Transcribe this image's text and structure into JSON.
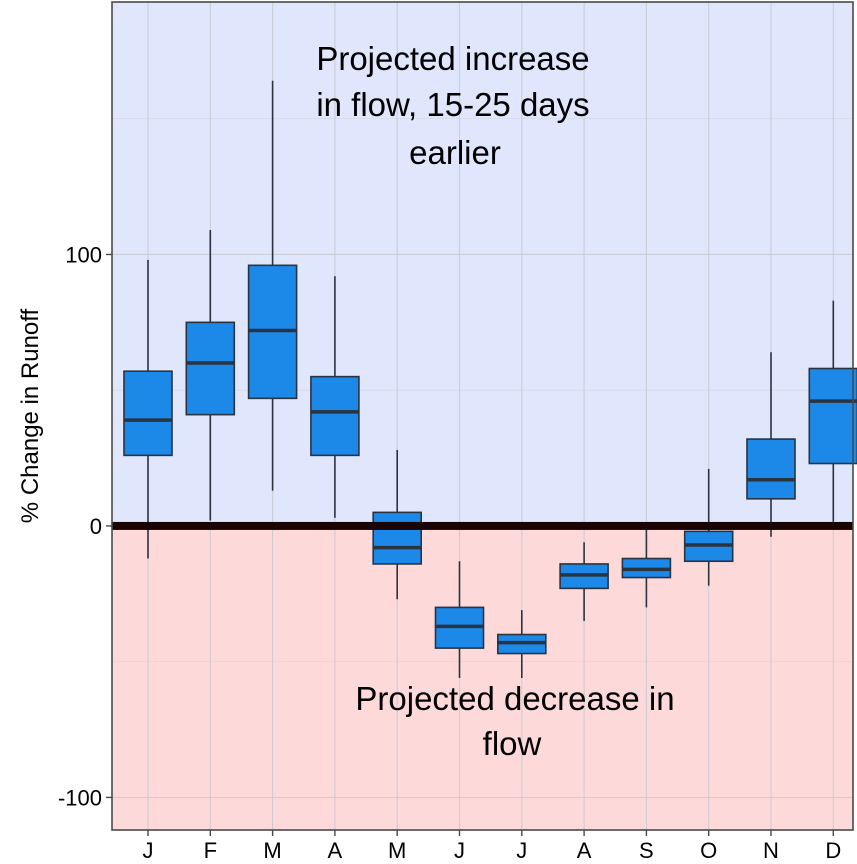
{
  "chart_data": {
    "type": "boxplot",
    "ylabel": "% Change in Runoff",
    "categories": [
      "J",
      "F",
      "M",
      "A",
      "M",
      "J",
      "J",
      "A",
      "S",
      "O",
      "N",
      "D"
    ],
    "boxes": [
      {
        "whisker_low": -12,
        "q1": 26,
        "median": 39,
        "q3": 57,
        "whisker_high": 98
      },
      {
        "whisker_low": 2,
        "q1": 41,
        "median": 60,
        "q3": 75,
        "whisker_high": 109
      },
      {
        "whisker_low": 13,
        "q1": 47,
        "median": 72,
        "q3": 96,
        "whisker_high": 164
      },
      {
        "whisker_low": 3,
        "q1": 26,
        "median": 42,
        "q3": 55,
        "whisker_high": 92
      },
      {
        "whisker_low": -27,
        "q1": -14,
        "median": -8,
        "q3": 5,
        "whisker_high": 28
      },
      {
        "whisker_low": -56,
        "q1": -45,
        "median": -37,
        "q3": -30,
        "whisker_high": -13
      },
      {
        "whisker_low": -56,
        "q1": -47,
        "median": -43,
        "q3": -40,
        "whisker_high": -31
      },
      {
        "whisker_low": -35,
        "q1": -23,
        "median": -18,
        "q3": -14,
        "whisker_high": -6
      },
      {
        "whisker_low": -30,
        "q1": -19,
        "median": -16,
        "q3": -12,
        "whisker_high": 0
      },
      {
        "whisker_low": -22,
        "q1": -13,
        "median": -7,
        "q3": -2,
        "whisker_high": 21
      },
      {
        "whisker_low": -4,
        "q1": 10,
        "median": 17,
        "q3": 32,
        "whisker_high": 64
      },
      {
        "whisker_low": 1,
        "q1": 23,
        "median": 46,
        "q3": 58,
        "whisker_high": 83
      }
    ],
    "yticks": [
      -100,
      0,
      100
    ],
    "ylim": [
      -112,
      193
    ],
    "zero_line": 0,
    "annotations": {
      "top": [
        "Projected increase",
        "in flow, 15-25 days",
        "earlier"
      ],
      "bottom": [
        "Projected decrease in",
        "flow"
      ]
    },
    "colors": {
      "box_fill": "#1c89e8",
      "box_stroke": "#2a3340",
      "increase_region": "#e0e6fb",
      "decrease_region": "#fdd9da",
      "zero_line": "#1a0505",
      "grid": "#c9cbd4"
    },
    "grid": true
  }
}
